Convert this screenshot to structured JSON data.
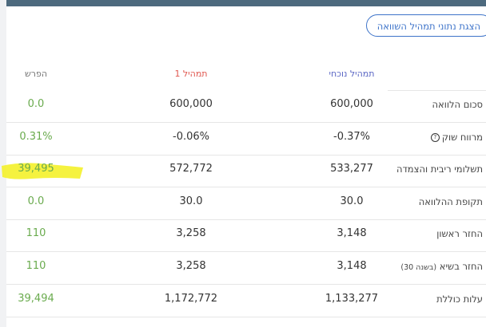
{
  "header": {
    "button": "הצגת נתוני תמהיל השוואה"
  },
  "table": {
    "columns": [
      "תמהיל נוכחי",
      "תמהיל 1",
      "הפרש"
    ],
    "rows": [
      {
        "label": "סכום הלוואה",
        "current": "600,000",
        "mix1": "600,000",
        "diff": "0.0"
      },
      {
        "label": "מרווח שוק",
        "current": "-0.37%",
        "mix1": "-0.06%",
        "diff": "0.31%"
      },
      {
        "label": "תשלומי ריבית והצמדה",
        "current": "533,277",
        "mix1": "572,772",
        "diff": "39,495"
      },
      {
        "label": "תקופת ההלוואה",
        "current": "30.0",
        "mix1": "30.0",
        "diff": "0.0"
      },
      {
        "label": "החזר ראשון",
        "current": "3,148",
        "mix1": "3,258",
        "diff": "110"
      },
      {
        "label": "החזר בשיא",
        "note": "(בשנה 30)",
        "current": "3,148",
        "mix1": "3,258",
        "diff": "110"
      },
      {
        "label": "עלות כוללת",
        "current": "1,133,277",
        "mix1": "1,172,772",
        "diff": "39,494"
      }
    ]
  }
}
